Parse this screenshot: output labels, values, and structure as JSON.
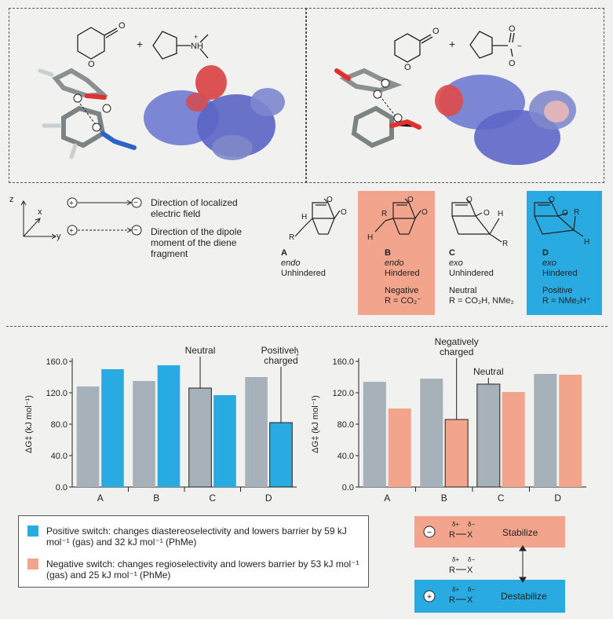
{
  "top_panels": {
    "left": {
      "plus": "+",
      "amine_label": "NH",
      "amine_charge": "+"
    },
    "right": {
      "plus": "+",
      "carbox_charge": "−"
    }
  },
  "legend_fields": {
    "axis_z": "z",
    "axis_x": "x",
    "axis_y": "y",
    "field_line": "Direction of localized electric field",
    "dipole_line": "Direction of the dipole moment of the diene fragment"
  },
  "isomers": [
    {
      "letter": "A",
      "type": "endo",
      "steric": "Unhindered",
      "charge": "",
      "r": "",
      "bg": "#f1f1ef"
    },
    {
      "letter": "B",
      "type": "endo",
      "steric": "Hindered",
      "charge": "Negative",
      "r": "R = CO₂⁻",
      "bg": "#f2a58c"
    },
    {
      "letter": "C",
      "type": "exo",
      "steric": "Unhindered",
      "charge": "Neutral",
      "r": "R = CO₂H, NMe₂",
      "bg": "#f1f1ef"
    },
    {
      "letter": "D",
      "type": "exo",
      "steric": "Hindered",
      "charge": "Positive",
      "r": "R = NMe₂H⁺",
      "bg": "#29abe2"
    }
  ],
  "colors": {
    "grey": "#a7b1b9",
    "blue": "#29abe2",
    "salmon": "#f2a58c"
  },
  "chart_data": [
    {
      "type": "bar",
      "categories": [
        "A",
        "B",
        "C",
        "D"
      ],
      "series": [
        {
          "values": [
            128,
            135,
            126,
            140
          ],
          "color": "grey"
        },
        {
          "values": [
            150,
            155,
            117,
            82
          ],
          "color": "blue"
        }
      ],
      "ylabel": "ΔG‡ (kJ mol⁻¹)",
      "ylim": [
        0,
        160
      ],
      "yticks": [
        "0.0",
        "40.0",
        "80.0",
        "120.0",
        "160.0"
      ],
      "annotations": [
        "Neutral",
        "Positively charged"
      ]
    },
    {
      "type": "bar",
      "categories": [
        "A",
        "B",
        "C",
        "D"
      ],
      "series": [
        {
          "values": [
            134,
            138,
            131,
            144
          ],
          "color": "grey"
        },
        {
          "values": [
            100,
            86,
            121,
            143
          ],
          "color": "salmon"
        }
      ],
      "ylabel": "ΔG‡ (kJ mol⁻¹)",
      "ylim": [
        0,
        160
      ],
      "yticks": [
        "0.0",
        "40.0",
        "80.0",
        "120.0",
        "160.0"
      ],
      "annotations": [
        "Negatively charged",
        "Neutral"
      ]
    }
  ],
  "key": {
    "positive": "Positive switch: changes diastereoselectivity and lowers barrier by 59 kJ mol⁻¹ (gas) and 32 kJ mol⁻¹ (PhMe)",
    "negative": "Negative switch: changes regioselectivity and lowers barrier by 53 kJ mol⁻¹ (gas) and 25 kJ mol⁻¹ (PhMe)"
  },
  "stabilize_box": {
    "minus": "−",
    "plus": "+",
    "delta_pos": "δ+",
    "delta_neg": "δ−",
    "r": "R",
    "x": "X",
    "stabilize": "Stabilize",
    "destabilize": "Destabilize"
  }
}
